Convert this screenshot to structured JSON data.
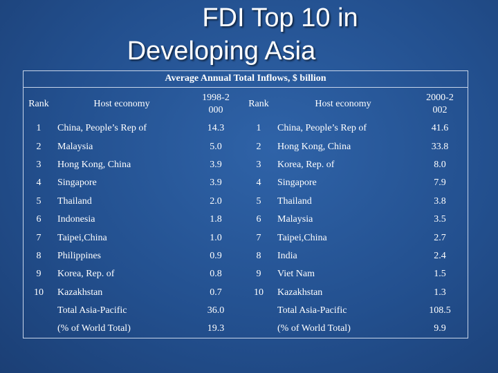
{
  "title": {
    "line1": "FDI Top 10 in",
    "line2": "Developing Asia"
  },
  "table": {
    "caption": "Average Annual Total Inflows, $ billion",
    "headers": {
      "rank_left": "Rank",
      "economy_left": "Host economy",
      "period_left": "1998-2000",
      "rank_right": "Rank",
      "economy_right": "Host economy",
      "period_right": "2000-2002"
    },
    "rows": [
      {
        "rank_left": "1",
        "economy_left": "China, People’s Rep of",
        "value_left": "14.3",
        "rank_right": "1",
        "economy_right": "China, People’s Rep of",
        "value_right": "41.6"
      },
      {
        "rank_left": "2",
        "economy_left": "Malaysia",
        "value_left": "5.0",
        "rank_right": "2",
        "economy_right": "Hong Kong, China",
        "value_right": "33.8"
      },
      {
        "rank_left": "3",
        "economy_left": "Hong Kong, China",
        "value_left": "3.9",
        "rank_right": "3",
        "economy_right": "Korea, Rep. of",
        "value_right": "8.0"
      },
      {
        "rank_left": "4",
        "economy_left": "Singapore",
        "value_left": "3.9",
        "rank_right": "4",
        "economy_right": "Singapore",
        "value_right": "7.9"
      },
      {
        "rank_left": "5",
        "economy_left": "Thailand",
        "value_left": "2.0",
        "rank_right": "5",
        "economy_right": "Thailand",
        "value_right": "3.8"
      },
      {
        "rank_left": "6",
        "economy_left": "Indonesia",
        "value_left": "1.8",
        "rank_right": "6",
        "economy_right": "Malaysia",
        "value_right": "3.5"
      },
      {
        "rank_left": "7",
        "economy_left": "Taipei,China",
        "value_left": "1.0",
        "rank_right": "7",
        "economy_right": "Taipei,China",
        "value_right": "2.7"
      },
      {
        "rank_left": "8",
        "economy_left": "Philippines",
        "value_left": "0.9",
        "rank_right": "8",
        "economy_right": "India",
        "value_right": "2.4"
      },
      {
        "rank_left": "9",
        "economy_left": "Korea, Rep. of",
        "value_left": "0.8",
        "rank_right": "9",
        "economy_right": "Viet Nam",
        "value_right": "1.5"
      },
      {
        "rank_left": "10",
        "economy_left": "Kazakhstan",
        "value_left": "0.7",
        "rank_right": "10",
        "economy_right": "Kazakhstan",
        "value_right": "1.3"
      }
    ],
    "totals": [
      {
        "label_left": "Total Asia-Pacific",
        "value_left": "36.0",
        "label_right": "Total Asia-Pacific",
        "value_right": "108.5"
      },
      {
        "label_left": "(% of World Total)",
        "value_left": "19.3",
        "label_right": "(% of World Total)",
        "value_right": "9.9"
      }
    ]
  }
}
